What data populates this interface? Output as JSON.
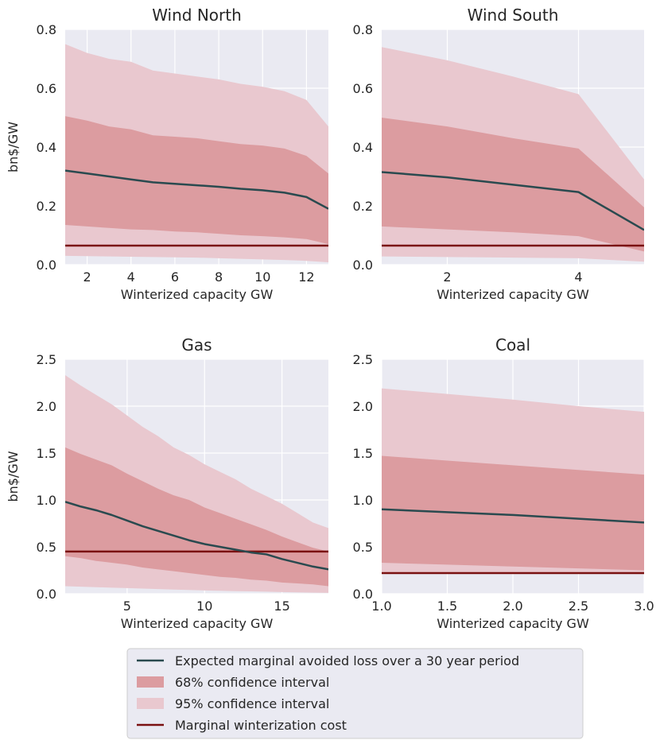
{
  "colors": {
    "plot_bg": "#eaeaf2",
    "grid": "#ffffff",
    "mean_line": "#2a4a4f",
    "ci68": "#dc9ca0",
    "ci95": "#e9c8cf",
    "cost_line": "#7a1111",
    "legend_bg": "#eaeaf2",
    "legend_border": "#cccccc"
  },
  "legend": {
    "placement": "bottom-center",
    "entries": [
      {
        "key": "mean",
        "label": "Expected marginal avoided loss over a 30 year period"
      },
      {
        "key": "ci68",
        "label": "68% confidence interval"
      },
      {
        "key": "ci95",
        "label": "95% confidence interval"
      },
      {
        "key": "cost",
        "label": "Marginal winterization cost"
      }
    ]
  },
  "chart_data": [
    {
      "type": "line",
      "title": "Wind North",
      "xlabel": "Winterized capacity GW",
      "ylabel": "bn$/GW",
      "xlim": [
        1,
        13
      ],
      "ylim": [
        0,
        0.8
      ],
      "xticks": [
        2,
        4,
        6,
        8,
        10,
        12
      ],
      "yticks": [
        0.0,
        0.2,
        0.4,
        0.6,
        0.8
      ],
      "xtick_labels": [
        "2",
        "4",
        "6",
        "8",
        "10",
        "12"
      ],
      "ytick_labels": [
        "0.0",
        "0.2",
        "0.4",
        "0.6",
        "0.8"
      ],
      "grid": true,
      "x": [
        1,
        2,
        3,
        4,
        5,
        6,
        7,
        8,
        9,
        10,
        11,
        12,
        13
      ],
      "mean": [
        0.32,
        0.31,
        0.3,
        0.29,
        0.28,
        0.275,
        0.27,
        0.265,
        0.258,
        0.253,
        0.245,
        0.23,
        0.19
      ],
      "ci68_low": [
        0.135,
        0.13,
        0.125,
        0.12,
        0.118,
        0.113,
        0.11,
        0.105,
        0.1,
        0.097,
        0.093,
        0.087,
        0.07
      ],
      "ci68_high": [
        0.505,
        0.49,
        0.47,
        0.46,
        0.44,
        0.435,
        0.43,
        0.42,
        0.41,
        0.405,
        0.395,
        0.37,
        0.31
      ],
      "ci95_low": [
        0.03,
        0.029,
        0.028,
        0.027,
        0.026,
        0.025,
        0.024,
        0.022,
        0.02,
        0.018,
        0.016,
        0.013,
        0.008
      ],
      "ci95_high": [
        0.75,
        0.72,
        0.7,
        0.69,
        0.66,
        0.65,
        0.64,
        0.63,
        0.615,
        0.605,
        0.59,
        0.56,
        0.47
      ],
      "cost": 0.065
    },
    {
      "type": "line",
      "title": "Wind South",
      "xlabel": "Winterized capacity GW",
      "ylabel": "",
      "xlim": [
        1,
        5
      ],
      "ylim": [
        0,
        0.8
      ],
      "xticks": [
        2,
        4
      ],
      "yticks": [
        0.0,
        0.2,
        0.4,
        0.6,
        0.8
      ],
      "xtick_labels": [
        "2",
        "4"
      ],
      "ytick_labels": [
        "0.0",
        "0.2",
        "0.4",
        "0.6",
        "0.8"
      ],
      "grid": true,
      "x": [
        1,
        2,
        3,
        4,
        5
      ],
      "mean": [
        0.315,
        0.297,
        0.272,
        0.247,
        0.118
      ],
      "ci68_low": [
        0.13,
        0.12,
        0.11,
        0.097,
        0.045
      ],
      "ci68_high": [
        0.5,
        0.47,
        0.43,
        0.395,
        0.195
      ],
      "ci95_low": [
        0.028,
        0.026,
        0.024,
        0.022,
        0.01
      ],
      "ci95_high": [
        0.74,
        0.695,
        0.64,
        0.58,
        0.29
      ],
      "cost": 0.065
    },
    {
      "type": "line",
      "title": "Gas",
      "xlabel": "Winterized capacity GW",
      "ylabel": "bn$/GW",
      "xlim": [
        1,
        18
      ],
      "ylim": [
        0,
        2.5
      ],
      "xticks": [
        5,
        10,
        15
      ],
      "yticks": [
        0.0,
        0.5,
        1.0,
        1.5,
        2.0,
        2.5
      ],
      "xtick_labels": [
        "5",
        "10",
        "15"
      ],
      "ytick_labels": [
        "0.0",
        "0.5",
        "1.0",
        "1.5",
        "2.0",
        "2.5"
      ],
      "grid": true,
      "x": [
        1,
        2,
        3,
        4,
        5,
        6,
        7,
        8,
        9,
        10,
        11,
        12,
        13,
        14,
        15,
        16,
        17,
        18
      ],
      "mean": [
        0.98,
        0.93,
        0.89,
        0.84,
        0.78,
        0.72,
        0.67,
        0.62,
        0.57,
        0.53,
        0.5,
        0.47,
        0.44,
        0.42,
        0.37,
        0.33,
        0.29,
        0.26
      ],
      "ci68_low": [
        0.4,
        0.38,
        0.35,
        0.33,
        0.31,
        0.28,
        0.26,
        0.24,
        0.22,
        0.2,
        0.18,
        0.17,
        0.15,
        0.14,
        0.12,
        0.11,
        0.1,
        0.08
      ],
      "ci68_high": [
        1.56,
        1.49,
        1.43,
        1.37,
        1.28,
        1.2,
        1.12,
        1.05,
        1.0,
        0.92,
        0.86,
        0.8,
        0.74,
        0.68,
        0.61,
        0.55,
        0.49,
        0.45
      ],
      "ci95_low": [
        0.08,
        0.075,
        0.07,
        0.065,
        0.06,
        0.055,
        0.05,
        0.045,
        0.04,
        0.035,
        0.032,
        0.028,
        0.025,
        0.022,
        0.018,
        0.015,
        0.012,
        0.01
      ],
      "ci95_high": [
        2.33,
        2.22,
        2.12,
        2.02,
        1.9,
        1.78,
        1.68,
        1.56,
        1.48,
        1.38,
        1.3,
        1.22,
        1.12,
        1.04,
        0.96,
        0.86,
        0.76,
        0.7
      ],
      "cost": 0.45
    },
    {
      "type": "line",
      "title": "Coal",
      "xlabel": "Winterized capacity GW",
      "ylabel": "",
      "xlim": [
        1.0,
        3.0
      ],
      "ylim": [
        0,
        2.5
      ],
      "xticks": [
        1.0,
        1.5,
        2.0,
        2.5,
        3.0
      ],
      "yticks": [
        0.0,
        0.5,
        1.0,
        1.5,
        2.0,
        2.5
      ],
      "xtick_labels": [
        "1.0",
        "1.5",
        "2.0",
        "2.5",
        "3.0"
      ],
      "ytick_labels": [
        "0.0",
        "0.5",
        "1.0",
        "1.5",
        "2.0",
        "2.5"
      ],
      "grid": true,
      "x": [
        1.0,
        1.5,
        2.0,
        2.5,
        3.0
      ],
      "mean": [
        0.9,
        0.87,
        0.84,
        0.8,
        0.76
      ],
      "ci68_low": [
        0.33,
        0.31,
        0.29,
        0.27,
        0.25
      ],
      "ci68_high": [
        1.47,
        1.42,
        1.37,
        1.32,
        1.27
      ],
      "ci95_low": [
        0.23,
        0.225,
        0.22,
        0.215,
        0.21
      ],
      "ci95_high": [
        2.19,
        2.13,
        2.07,
        2.0,
        1.94
      ],
      "cost": 0.22
    }
  ]
}
